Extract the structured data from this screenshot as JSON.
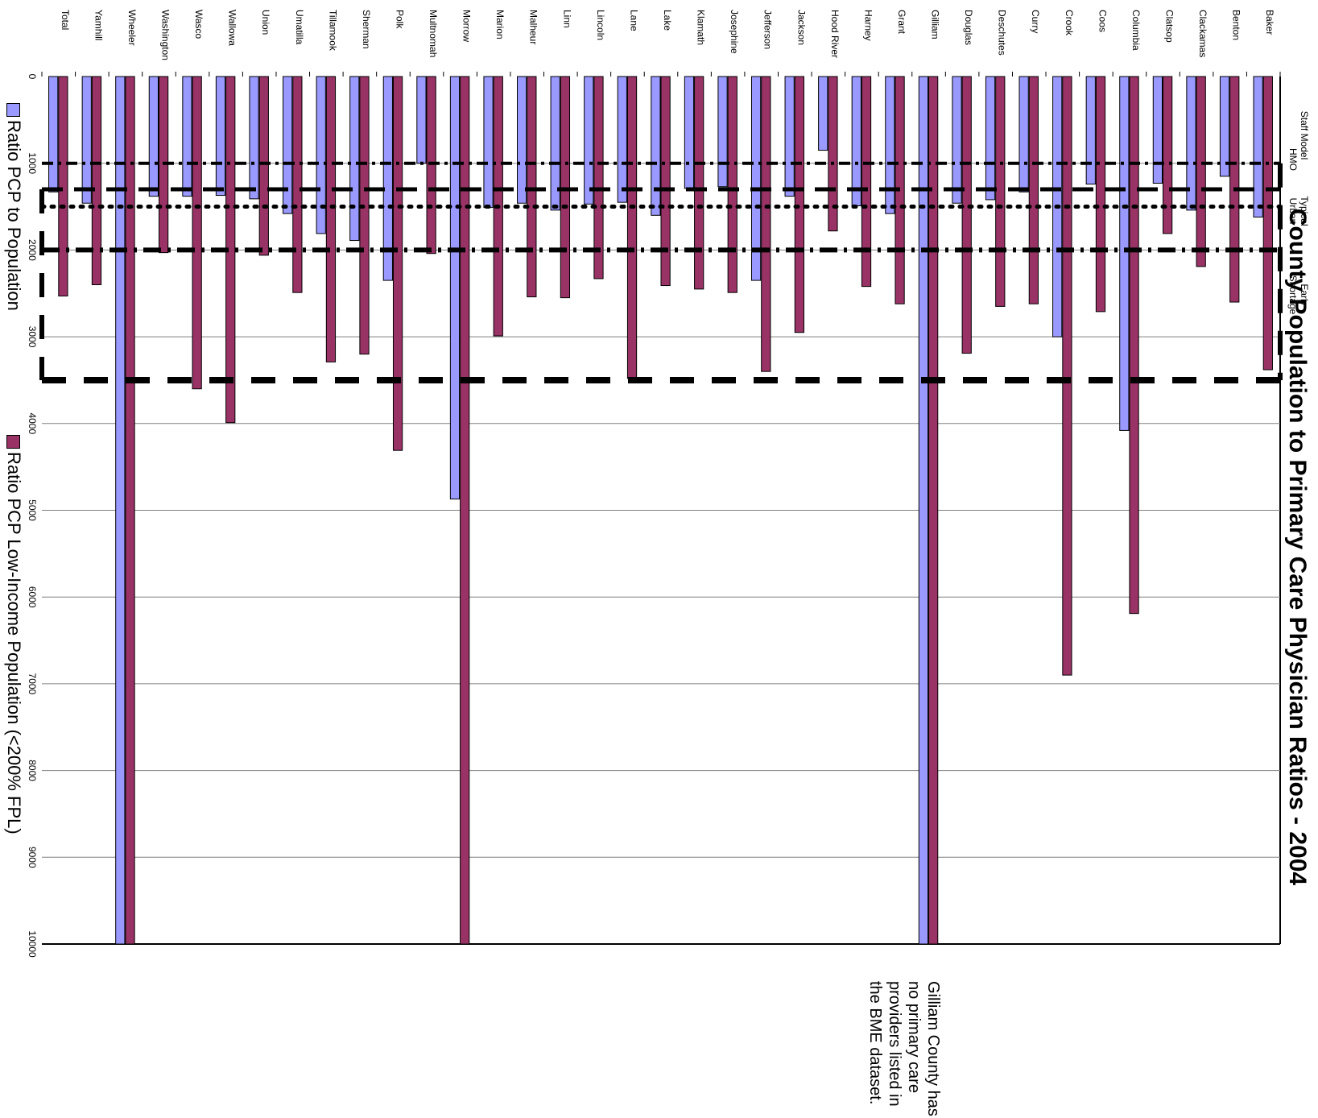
{
  "title": "County Population to Primary Care Physician Ratios - 2004",
  "legend": [
    {
      "label": "Ratio PCP to Population",
      "color": "#9999FF"
    },
    {
      "label": "Ratio PCP Low-Income Population (<200% FPL)",
      "color": "#993366"
    }
  ],
  "note": "Gilliam County has no primary care providers listed in the BME dataset.",
  "reference_lines": [
    {
      "label": "Staff Model HMO",
      "value": 1000
    },
    {
      "label": "Typical",
      "value": 1300
    },
    {
      "label": "Urban",
      "value": 1500
    },
    {
      "label": "Early",
      "value": 2000
    },
    {
      "label": "Shortage",
      "value": 3500
    }
  ],
  "chart_data": {
    "type": "bar",
    "orientation": "horizontal (rotated 90°)",
    "ylim": [
      0,
      10000
    ],
    "ticks": [
      "0",
      "1000",
      "2000",
      "3000",
      "4000",
      "5000",
      "6000",
      "7000",
      "8000",
      "9000",
      "10000"
    ],
    "categories": [
      "Baker",
      "Benton",
      "Clackamas",
      "Clatsop",
      "Columbia",
      "Coos",
      "Crook",
      "Curry",
      "Deschutes",
      "Douglas",
      "Gilliam",
      "Grant",
      "Harney",
      "Hood River",
      "Jackson",
      "Jefferson",
      "Josephine",
      "Klamath",
      "Lake",
      "Lane",
      "Lincoln",
      "Linn",
      "Malheur",
      "Marion",
      "Morrow",
      "Multnomah",
      "Polk",
      "Sherman",
      "Tillamook",
      "Umatilla",
      "Union",
      "Wallowa",
      "Wasco",
      "Washington",
      "Wheeler",
      "Yamhill",
      "Total"
    ],
    "series": [
      {
        "name": "Ratio PCP to Population",
        "values": [
          1620,
          1150,
          1540,
          1230,
          4080,
          1240,
          3000,
          1330,
          1420,
          1460,
          10000,
          1580,
          1490,
          850,
          1380,
          2350,
          1270,
          1290,
          1600,
          1450,
          1470,
          1540,
          1460,
          1510,
          4870,
          1000,
          2350,
          1890,
          1810,
          1580,
          1410,
          1370,
          1380,
          1380,
          10000,
          1460,
          1330
        ]
      },
      {
        "name": "Ratio PCP Low-Income Population (<200% FPL)",
        "values": [
          3380,
          2600,
          2190,
          1810,
          6190,
          2710,
          6900,
          2620,
          2650,
          3190,
          10000,
          2620,
          2420,
          1780,
          2950,
          3400,
          2490,
          2450,
          2410,
          3480,
          2330,
          2550,
          2540,
          2990,
          10000,
          2040,
          4310,
          3200,
          3290,
          2490,
          2060,
          3990,
          3600,
          2030,
          10000,
          2400,
          2530
        ]
      }
    ]
  }
}
